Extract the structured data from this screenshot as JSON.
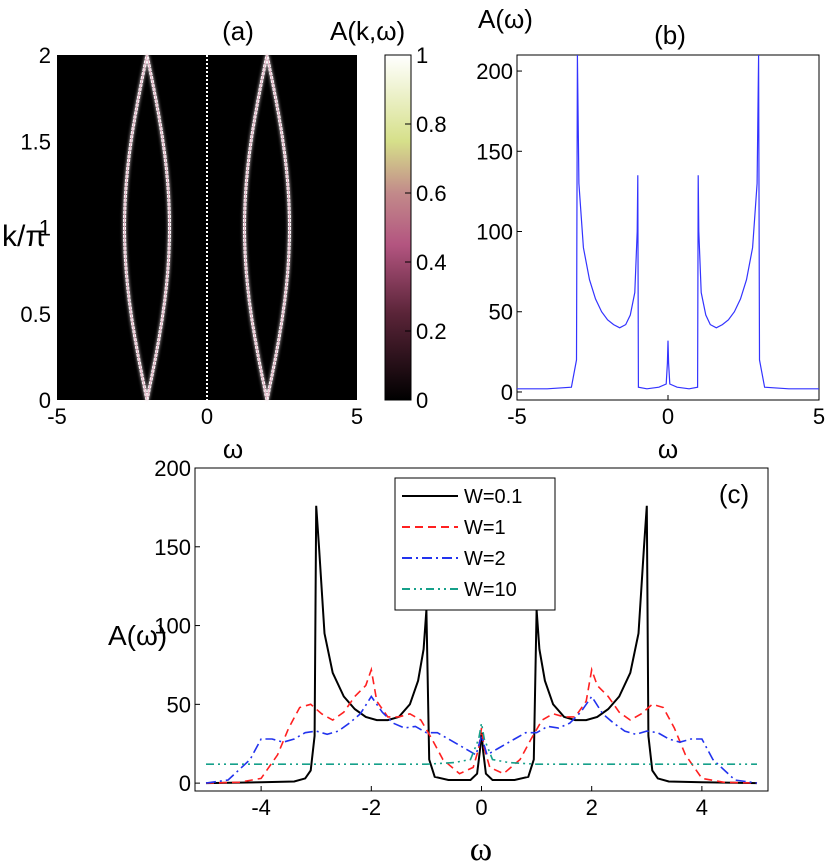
{
  "chart_data": [
    {
      "id": "a",
      "type": "heatmap",
      "panel_label": "(a)",
      "colorbar_label": "A(k,ω)",
      "xlabel": "ω",
      "ylabel": "k/π",
      "xlim": [
        -5,
        5
      ],
      "ylim": [
        0,
        2
      ],
      "xticks": [
        "-5",
        "0",
        "5"
      ],
      "yticks": [
        "0",
        "0.5",
        "1",
        "1.5",
        "2"
      ],
      "colorbar_range": [
        0,
        1
      ],
      "colorbar_ticks": [
        "0",
        "0.2",
        "0.4",
        "0.6",
        "0.8",
        "1"
      ],
      "colors": {
        "low": "#000000",
        "mid": "#c0628f",
        "high_mid": "#d9e48a",
        "high": "#ffffff"
      },
      "bands": [
        {
          "center": -2.0,
          "amplitude": 1.0,
          "omega": 2.0
        },
        {
          "center": -2.0,
          "amplitude": -1.0,
          "omega": 2.0
        },
        {
          "center": 2.0,
          "amplitude": 1.0,
          "omega": 2.0
        },
        {
          "center": 2.0,
          "amplitude": -1.0,
          "omega": 2.0
        }
      ],
      "zero_line": 0
    },
    {
      "id": "b",
      "type": "line",
      "panel_label": "(b)",
      "ylabel": "A(ω)",
      "xlabel": "ω",
      "xlim": [
        -5,
        5
      ],
      "ylim": [
        -5,
        210
      ],
      "xticks": [
        "-5",
        "0",
        "5"
      ],
      "yticks": [
        "0",
        "50",
        "100",
        "150",
        "200"
      ],
      "color": "#3333ff",
      "x": [
        -5,
        -4,
        -3.2,
        -3.03,
        -3.0,
        -2.95,
        -2.8,
        -2.6,
        -2.4,
        -2.2,
        -2.0,
        -1.8,
        -1.6,
        -1.4,
        -1.25,
        -1.1,
        -1.02,
        -1.0,
        -0.98,
        -0.7,
        -0.3,
        -0.06,
        -0.02,
        0.0,
        0.02,
        0.06,
        0.3,
        0.7,
        0.98,
        1.0,
        1.02,
        1.1,
        1.25,
        1.4,
        1.6,
        1.8,
        2.0,
        2.2,
        2.4,
        2.6,
        2.8,
        2.95,
        3.0,
        3.03,
        3.2,
        4,
        5
      ],
      "values": [
        2,
        2,
        3,
        20,
        210,
        130,
        90,
        70,
        58,
        50,
        45,
        42,
        40,
        42,
        48,
        62,
        100,
        135,
        3,
        2,
        3,
        5,
        18,
        32,
        18,
        5,
        3,
        2,
        3,
        135,
        100,
        62,
        48,
        42,
        40,
        42,
        45,
        50,
        58,
        70,
        90,
        130,
        210,
        20,
        3,
        2,
        2
      ]
    },
    {
      "id": "c",
      "type": "line",
      "panel_label": "(c)",
      "ylabel": "A(ω)",
      "xlabel": "ω",
      "xlim": [
        -5.2,
        5.2
      ],
      "ylim": [
        -5,
        200
      ],
      "xticks": [
        "-4",
        "-2",
        "0",
        "2",
        "4"
      ],
      "yticks": [
        "0",
        "50",
        "100",
        "150",
        "200"
      ],
      "legend_position": "top-center",
      "series": [
        {
          "name": "W=0.1",
          "color": "#000000",
          "dash": "",
          "x": [
            -5,
            -4,
            -3.4,
            -3.2,
            -3.1,
            -3.03,
            -3.0,
            -2.95,
            -2.85,
            -2.7,
            -2.5,
            -2.3,
            -2.1,
            -1.9,
            -1.7,
            -1.5,
            -1.3,
            -1.15,
            -1.05,
            -1.0,
            -0.95,
            -0.85,
            -0.6,
            -0.2,
            -0.08,
            -0.03,
            0,
            0.03,
            0.08,
            0.2,
            0.6,
            0.85,
            0.95,
            1.0,
            1.05,
            1.15,
            1.3,
            1.5,
            1.7,
            1.9,
            2.1,
            2.3,
            2.5,
            2.7,
            2.85,
            2.95,
            3.0,
            3.03,
            3.1,
            3.2,
            3.4,
            4,
            5
          ],
          "values": [
            0,
            0.5,
            1,
            3,
            8,
            30,
            176,
            150,
            95,
            70,
            55,
            47,
            42,
            40,
            40,
            42,
            50,
            65,
            85,
            110,
            15,
            4,
            2,
            2,
            6,
            20,
            32,
            20,
            6,
            2,
            2,
            4,
            15,
            110,
            85,
            65,
            50,
            42,
            40,
            40,
            42,
            47,
            55,
            70,
            95,
            150,
            176,
            30,
            8,
            3,
            1,
            0.5,
            0
          ]
        },
        {
          "name": "W=1",
          "color": "#ff2020",
          "dash": "8,5",
          "x": [
            -5,
            -4.4,
            -4,
            -3.7,
            -3.5,
            -3.3,
            -3.1,
            -2.9,
            -2.7,
            -2.5,
            -2.3,
            -2.1,
            -2.0,
            -1.9,
            -1.7,
            -1.5,
            -1.3,
            -1.1,
            -0.9,
            -0.7,
            -0.4,
            -0.15,
            -0.05,
            0,
            0.05,
            0.15,
            0.4,
            0.7,
            0.9,
            1.1,
            1.3,
            1.5,
            1.7,
            1.9,
            2.0,
            2.1,
            2.3,
            2.5,
            2.7,
            2.9,
            3.1,
            3.3,
            3.5,
            3.7,
            4,
            4.4,
            5
          ],
          "values": [
            0,
            0.5,
            3,
            18,
            35,
            48,
            50,
            44,
            40,
            45,
            55,
            62,
            72,
            52,
            42,
            42,
            44,
            40,
            28,
            15,
            6,
            10,
            22,
            35,
            22,
            10,
            6,
            15,
            28,
            40,
            44,
            42,
            42,
            52,
            72,
            62,
            55,
            45,
            40,
            44,
            50,
            48,
            35,
            18,
            3,
            0.5,
            0
          ]
        },
        {
          "name": "W=2",
          "color": "#2233ee",
          "dash": "10,4,2,4",
          "x": [
            -5,
            -4.6,
            -4.2,
            -4.0,
            -3.8,
            -3.6,
            -3.4,
            -3.2,
            -3.0,
            -2.8,
            -2.6,
            -2.4,
            -2.2,
            -2.0,
            -1.8,
            -1.6,
            -1.4,
            -1.2,
            -1.0,
            -0.8,
            -0.6,
            -0.3,
            -0.1,
            0,
            0.1,
            0.3,
            0.6,
            0.8,
            1.0,
            1.2,
            1.4,
            1.6,
            1.8,
            2.0,
            2.2,
            2.4,
            2.6,
            2.8,
            3.0,
            3.2,
            3.4,
            3.6,
            3.8,
            4.0,
            4.2,
            4.6,
            5
          ],
          "values": [
            0,
            2,
            15,
            28,
            28,
            26,
            28,
            32,
            33,
            31,
            33,
            38,
            44,
            55,
            45,
            38,
            35,
            36,
            32,
            32,
            28,
            22,
            18,
            30,
            18,
            22,
            28,
            32,
            32,
            36,
            35,
            38,
            45,
            55,
            44,
            38,
            33,
            31,
            33,
            32,
            28,
            26,
            28,
            28,
            15,
            2,
            0
          ]
        },
        {
          "name": "W=10",
          "color": "#16a08a",
          "dash": "8,4,2,4,2,4",
          "x": [
            -5,
            -4,
            -3,
            -2,
            -1,
            -0.5,
            -0.2,
            -0.05,
            0,
            0.05,
            0.2,
            0.5,
            1,
            2,
            3,
            4,
            5
          ],
          "values": [
            12,
            12,
            12,
            12,
            12,
            13,
            15,
            28,
            38,
            28,
            15,
            13,
            12,
            12,
            12,
            12,
            12
          ]
        }
      ]
    }
  ]
}
